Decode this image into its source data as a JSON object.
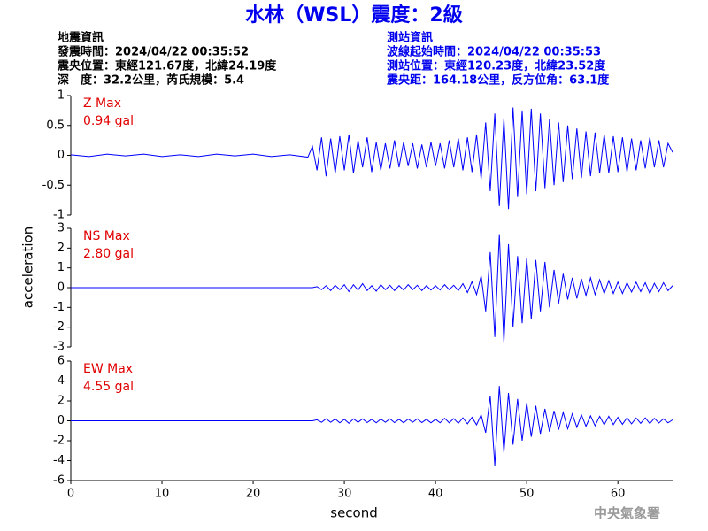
{
  "title": "水林（WSL）震度：2級",
  "event_info": [
    "地震資訊",
    "發震時間：2024/04/22 00:35:52",
    "震央位置：東經121.67度，北緯24.19度",
    "深　度：32.2公里，芮氏規模：5.4"
  ],
  "station_info": [
    "測站資訊",
    "波線起始時間：2024/04/22 00:35:53",
    "測站位置：東經120.23度，北緯23.52度",
    "震央距：164.18公里，反方位角：63.1度"
  ],
  "y_label": "acceleration",
  "x_label": "second",
  "footer": "中央氣象署",
  "chart_data": [
    {
      "type": "line",
      "name": "Z Max",
      "max_label": "0.94 gal",
      "color": "#0000ff",
      "xlim": [
        0,
        66
      ],
      "ylim": [
        -1,
        1
      ],
      "yticks": [
        -1,
        -0.5,
        0,
        0.5,
        1
      ],
      "x": [
        0,
        2,
        4,
        6,
        8,
        10,
        12,
        14,
        16,
        18,
        20,
        22,
        24,
        26,
        26.5,
        27,
        27.5,
        28,
        28.5,
        29,
        29.5,
        30,
        30.5,
        31,
        31.5,
        32,
        32.5,
        33,
        33.5,
        34,
        34.5,
        35,
        35.5,
        36,
        36.5,
        37,
        37.5,
        38,
        38.5,
        39,
        39.5,
        40,
        40.5,
        41,
        41.5,
        42,
        42.5,
        43,
        43.5,
        44,
        44.5,
        45,
        45.5,
        46,
        46.5,
        47,
        47.5,
        48,
        48.5,
        49,
        49.5,
        50,
        50.5,
        51,
        51.5,
        52,
        52.5,
        53,
        53.5,
        54,
        54.5,
        55,
        55.5,
        56,
        56.5,
        57,
        57.5,
        58,
        58.5,
        59,
        59.5,
        60,
        60.5,
        61,
        61.5,
        62,
        62.5,
        63,
        63.5,
        64,
        64.5,
        65,
        65.5,
        66
      ],
      "values": [
        0.01,
        -0.02,
        0.02,
        -0.01,
        0.02,
        -0.02,
        0.01,
        -0.02,
        0.02,
        -0.01,
        0.02,
        -0.02,
        0.01,
        -0.03,
        0.15,
        -0.25,
        0.3,
        -0.35,
        0.28,
        -0.3,
        0.32,
        -0.25,
        0.35,
        -0.3,
        0.25,
        -0.2,
        0.3,
        -0.28,
        0.22,
        -0.25,
        0.2,
        -0.22,
        0.25,
        -0.2,
        0.22,
        -0.18,
        0.2,
        -0.22,
        0.18,
        -0.2,
        0.22,
        -0.18,
        0.2,
        -0.22,
        0.25,
        -0.2,
        0.28,
        -0.25,
        0.3,
        -0.28,
        0.35,
        -0.4,
        0.55,
        -0.6,
        0.7,
        -0.85,
        0.62,
        -0.9,
        0.8,
        -0.7,
        0.75,
        -0.65,
        0.78,
        -0.6,
        0.7,
        -0.55,
        0.6,
        -0.5,
        0.55,
        -0.45,
        0.5,
        -0.4,
        0.45,
        -0.38,
        0.4,
        -0.35,
        0.38,
        -0.3,
        0.35,
        -0.3,
        0.32,
        -0.28,
        0.3,
        -0.28,
        0.28,
        -0.25,
        0.25,
        -0.22,
        0.3,
        -0.2,
        0.25,
        -0.2,
        0.2,
        0.05
      ]
    },
    {
      "type": "line",
      "name": "NS Max",
      "max_label": "2.80 gal",
      "color": "#0000ff",
      "xlim": [
        0,
        66
      ],
      "ylim": [
        -3,
        3
      ],
      "yticks": [
        -3,
        -2,
        -1,
        0,
        1,
        2,
        3
      ],
      "x": [
        0,
        2,
        4,
        6,
        8,
        10,
        12,
        14,
        16,
        18,
        20,
        22,
        24,
        26,
        26.5,
        27,
        27.5,
        28,
        28.5,
        29,
        29.5,
        30,
        30.5,
        31,
        31.5,
        32,
        32.5,
        33,
        33.5,
        34,
        34.5,
        35,
        35.5,
        36,
        36.5,
        37,
        37.5,
        38,
        38.5,
        39,
        39.5,
        40,
        40.5,
        41,
        41.5,
        42,
        42.5,
        43,
        43.5,
        44,
        44.5,
        45,
        45.5,
        46,
        46.5,
        47,
        47.5,
        48,
        48.5,
        49,
        49.5,
        50,
        50.5,
        51,
        51.5,
        52,
        52.5,
        53,
        53.5,
        54,
        54.5,
        55,
        55.5,
        56,
        56.5,
        57,
        57.5,
        58,
        58.5,
        59,
        59.5,
        60,
        60.5,
        61,
        61.5,
        62,
        62.5,
        63,
        63.5,
        64,
        64.5,
        65,
        65.5,
        66
      ],
      "values": [
        0,
        0,
        0,
        0,
        0,
        0,
        0,
        0,
        0,
        0,
        0,
        0,
        0,
        0,
        0,
        0.05,
        -0.1,
        0.1,
        -0.15,
        0.12,
        -0.1,
        0.15,
        -0.2,
        0.15,
        -0.12,
        0.2,
        -0.15,
        0.1,
        -0.18,
        0.15,
        -0.1,
        0.12,
        -0.15,
        0.1,
        -0.12,
        0.15,
        -0.1,
        0.12,
        -0.15,
        0.1,
        -0.12,
        0.1,
        -0.12,
        0.15,
        -0.1,
        0.12,
        -0.15,
        0.2,
        -0.25,
        0.3,
        -0.35,
        0.6,
        -1.2,
        1.8,
        -2.5,
        2.7,
        -2.8,
        2.2,
        -2,
        1.6,
        -1.8,
        1.5,
        -1.6,
        1.4,
        -1.2,
        1.3,
        -1,
        0.9,
        -0.8,
        0.7,
        -0.6,
        0.5,
        -0.55,
        0.45,
        -0.4,
        0.5,
        -0.35,
        0.4,
        -0.3,
        0.35,
        -0.3,
        0.28,
        -0.3,
        0.25,
        -0.22,
        0.28,
        -0.2,
        0.25,
        -0.3,
        0.22,
        -0.2,
        0.25,
        -0.15,
        0.1
      ]
    },
    {
      "type": "line",
      "name": "EW Max",
      "max_label": "4.55 gal",
      "color": "#0000ff",
      "xlim": [
        0,
        66
      ],
      "ylim": [
        -6,
        6
      ],
      "yticks": [
        -6,
        -4,
        -2,
        0,
        2,
        4,
        6
      ],
      "xticks": [
        0,
        10,
        20,
        30,
        40,
        50,
        60
      ],
      "x": [
        0,
        2,
        4,
        6,
        8,
        10,
        12,
        14,
        16,
        18,
        20,
        22,
        24,
        26,
        26.5,
        27,
        27.5,
        28,
        28.5,
        29,
        29.5,
        30,
        30.5,
        31,
        31.5,
        32,
        32.5,
        33,
        33.5,
        34,
        34.5,
        35,
        35.5,
        36,
        36.5,
        37,
        37.5,
        38,
        38.5,
        39,
        39.5,
        40,
        40.5,
        41,
        41.5,
        42,
        42.5,
        43,
        43.5,
        44,
        44.5,
        45,
        45.5,
        46,
        46.5,
        47,
        47.5,
        48,
        48.5,
        49,
        49.5,
        50,
        50.5,
        51,
        51.5,
        52,
        52.5,
        53,
        53.5,
        54,
        54.5,
        55,
        55.5,
        56,
        56.5,
        57,
        57.5,
        58,
        58.5,
        59,
        59.5,
        60,
        60.5,
        61,
        61.5,
        62,
        62.5,
        63,
        63.5,
        64,
        64.5,
        65,
        65.5,
        66
      ],
      "values": [
        0,
        0,
        0,
        0,
        0,
        0,
        0,
        0,
        0,
        0,
        0,
        0,
        0,
        0,
        0,
        0.1,
        -0.15,
        0.2,
        -0.15,
        0.18,
        -0.2,
        0.15,
        -0.25,
        0.2,
        -0.15,
        0.2,
        -0.18,
        0.15,
        -0.2,
        0.18,
        -0.15,
        0.2,
        -0.18,
        0.15,
        -0.2,
        0.18,
        -0.15,
        0.2,
        -0.18,
        0.15,
        -0.2,
        0.15,
        -0.2,
        0.25,
        -0.2,
        0.22,
        -0.25,
        0.3,
        -0.3,
        0.35,
        -0.4,
        0.6,
        -1.2,
        2.5,
        -4.5,
        3.5,
        -3.2,
        2.8,
        -2.4,
        2.2,
        -2,
        1.8,
        -1.6,
        1.5,
        -1.3,
        1.2,
        -1.1,
        1,
        -0.9,
        0.85,
        -0.8,
        0.7,
        -0.65,
        0.6,
        -0.55,
        0.5,
        -0.5,
        0.45,
        -0.4,
        0.45,
        -0.38,
        0.35,
        -0.35,
        0.3,
        -0.3,
        0.28,
        -0.25,
        0.3,
        -0.28,
        0.25,
        -0.22,
        0.2,
        -0.2,
        0.1
      ]
    }
  ]
}
